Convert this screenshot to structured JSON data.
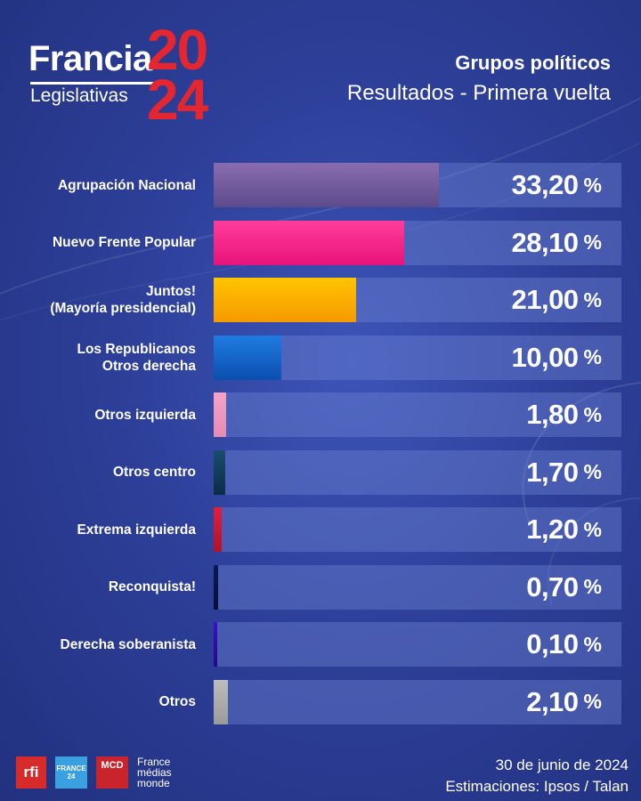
{
  "header": {
    "logo_word": "Francia",
    "logo_year_top": "20",
    "logo_year_bottom": "24",
    "logo_sub": "Legislativas",
    "title": "Grupos políticos",
    "subtitle": "Resultados - Primera vuelta"
  },
  "chart_data": {
    "type": "bar",
    "orientation": "horizontal",
    "xlim": [
      0,
      60
    ],
    "categories": [
      "Agrupación Nacional",
      "Nuevo Frente Popular",
      "Juntos!\n(Mayoría presidencial)",
      "Los Republicanos\nOtros derecha",
      "Otros izquierda",
      "Otros centro",
      "Extrema izquierda",
      "Reconquista!",
      "Derecha soberanista",
      "Otros"
    ],
    "values": [
      33.2,
      28.1,
      21.0,
      10.0,
      1.8,
      1.7,
      1.2,
      0.7,
      0.1,
      2.1
    ],
    "value_labels": [
      "33,20",
      "28,10",
      "21,00",
      "10,00",
      "1,80",
      "1,70",
      "1,20",
      "0,70",
      "0,10",
      "2,10"
    ],
    "unit": "%",
    "colors": [
      [
        "#8a6db0",
        "#5d4a8c"
      ],
      [
        "#ff3d9a",
        "#e8127a"
      ],
      [
        "#ffc400",
        "#f59a00"
      ],
      [
        "#1f7be0",
        "#0b4fb0"
      ],
      [
        "#f4a4c8",
        "#e58ab4"
      ],
      [
        "#1a4d6e",
        "#0c2c45"
      ],
      [
        "#e01f3d",
        "#b3102b"
      ],
      [
        "#0a1a55",
        "#060f38"
      ],
      [
        "#3a10c8",
        "#22088a"
      ],
      [
        "#bdbdbd",
        "#9a9a9a"
      ]
    ]
  },
  "footer": {
    "rfi": "rfi",
    "france24_a": "FRANCE",
    "france24_b": "24",
    "mcd": "MCD",
    "fmm_1": "France",
    "fmm_2": "médias",
    "fmm_3": "monde",
    "date": "30 de junio de 2024",
    "source": "Estimaciones: Ipsos / Talan"
  }
}
